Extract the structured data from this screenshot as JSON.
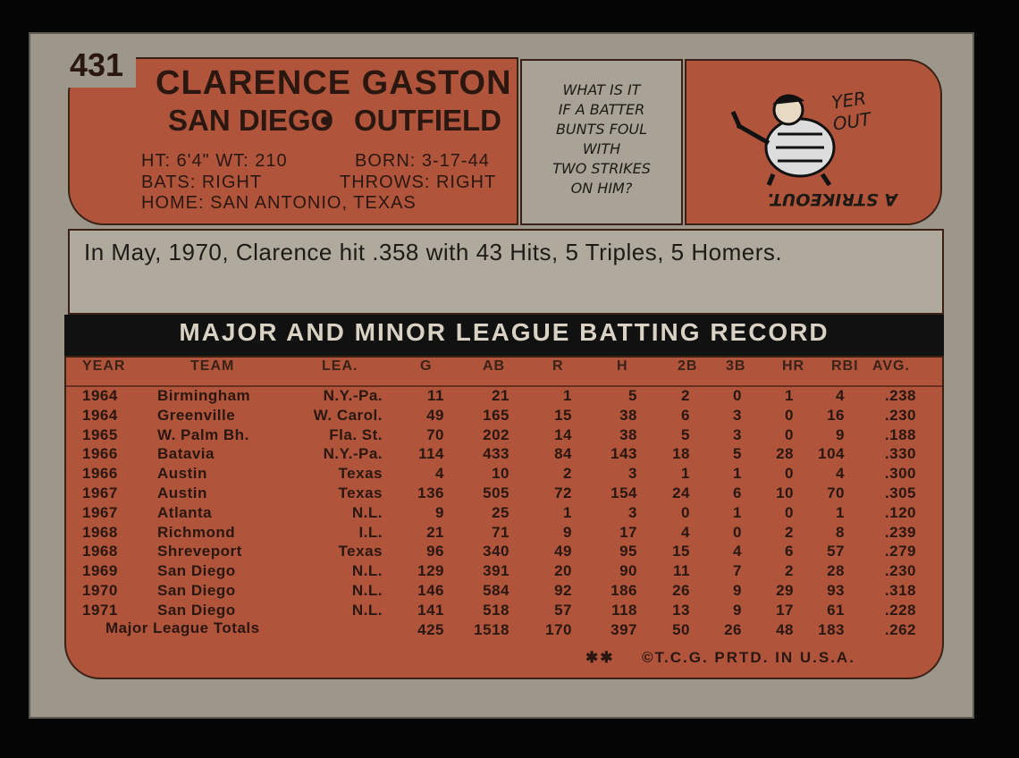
{
  "card_number": "431",
  "player": {
    "name": "CLARENCE GASTON",
    "team": "SAN DIEGO",
    "position": "OUTFIELD",
    "bio": [
      "HT: 6'4\" WT: 210",
      "BORN: 3-17-44",
      "BATS: RIGHT",
      "THROWS: RIGHT",
      "HOME: SAN ANTONIO, TEXAS"
    ]
  },
  "cartoon": {
    "question": [
      "WHAT IS IT",
      "IF A BATTER",
      "BUNTS FOUL",
      "WITH",
      "TWO STRIKES",
      "ON HIM?"
    ],
    "umpire_call": [
      "YER",
      "OUT"
    ],
    "answer": "A STRIKEOUT."
  },
  "blurb": "In May, 1970, Clarence hit .358 with 43 Hits, 5 Triples, 5 Homers.",
  "table": {
    "title": "MAJOR AND MINOR LEAGUE BATTING RECORD",
    "headers": [
      "YEAR",
      "TEAM",
      "LEA.",
      "G",
      "AB",
      "R",
      "H",
      "2B",
      "3B",
      "HR",
      "RBI",
      "AVG."
    ],
    "rows": [
      [
        "1964",
        "Birmingham",
        "N.Y.-Pa.",
        "11",
        "21",
        "1",
        "5",
        "2",
        "0",
        "1",
        "4",
        ".238"
      ],
      [
        "1964",
        "Greenville",
        "W. Carol.",
        "49",
        "165",
        "15",
        "38",
        "6",
        "3",
        "0",
        "16",
        ".230"
      ],
      [
        "1965",
        "W. Palm Bh.",
        "Fla. St.",
        "70",
        "202",
        "14",
        "38",
        "5",
        "3",
        "0",
        "9",
        ".188"
      ],
      [
        "1966",
        "Batavia",
        "N.Y.-Pa.",
        "114",
        "433",
        "84",
        "143",
        "18",
        "5",
        "28",
        "104",
        ".330"
      ],
      [
        "1966",
        "Austin",
        "Texas",
        "4",
        "10",
        "2",
        "3",
        "1",
        "1",
        "0",
        "4",
        ".300"
      ],
      [
        "1967",
        "Austin",
        "Texas",
        "136",
        "505",
        "72",
        "154",
        "24",
        "6",
        "10",
        "70",
        ".305"
      ],
      [
        "1967",
        "Atlanta",
        "N.L.",
        "9",
        "25",
        "1",
        "3",
        "0",
        "1",
        "0",
        "1",
        ".120"
      ],
      [
        "1968",
        "Richmond",
        "I.L.",
        "21",
        "71",
        "9",
        "17",
        "4",
        "0",
        "2",
        "8",
        ".239"
      ],
      [
        "1968",
        "Shreveport",
        "Texas",
        "96",
        "340",
        "49",
        "95",
        "15",
        "4",
        "6",
        "57",
        ".279"
      ],
      [
        "1969",
        "San Diego",
        "N.L.",
        "129",
        "391",
        "20",
        "90",
        "11",
        "7",
        "2",
        "28",
        ".230"
      ],
      [
        "1970",
        "San Diego",
        "N.L.",
        "146",
        "584",
        "92",
        "186",
        "26",
        "9",
        "29",
        "93",
        ".318"
      ],
      [
        "1971",
        "San Diego",
        "N.L.",
        "141",
        "518",
        "57",
        "118",
        "13",
        "9",
        "17",
        "61",
        ".228"
      ]
    ],
    "totals": {
      "label": "Major League Totals",
      "values": [
        "425",
        "1518",
        "170",
        "397",
        "50",
        "26",
        "48",
        "183",
        ".262"
      ]
    }
  },
  "footer_mark": "✱✱",
  "footer": "©T.C.G. PRTD. IN U.S.A."
}
